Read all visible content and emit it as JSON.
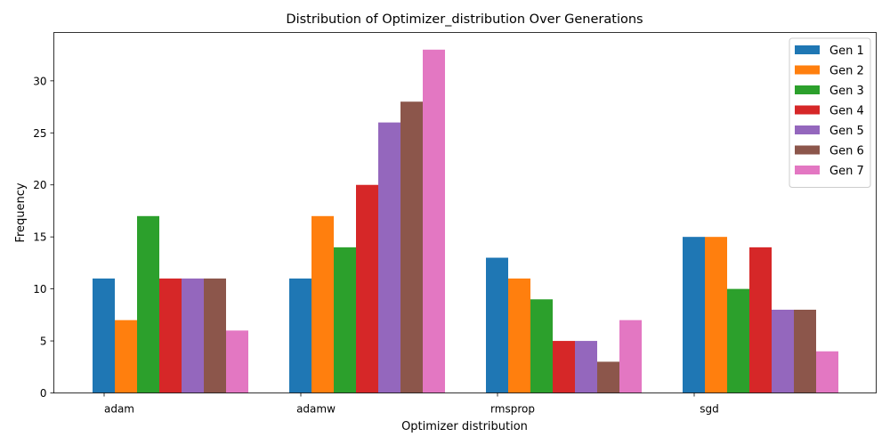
{
  "chart_data": {
    "type": "bar",
    "title": "Distribution of Optimizer_distribution Over Generations",
    "xlabel": "Optimizer distribution",
    "ylabel": "Frequency",
    "categories": [
      "adam",
      "adamw",
      "rmsprop",
      "sgd"
    ],
    "ylim": [
      0,
      34.65
    ],
    "yticks": [
      0,
      5,
      10,
      15,
      20,
      25,
      30
    ],
    "ytick_labels": [
      "0",
      "5",
      "10",
      "15",
      "20",
      "25",
      "30"
    ],
    "grid": false,
    "legend_position": "top-right",
    "series": [
      {
        "name": "Gen 1",
        "color": "#1f77b4",
        "values": [
          11,
          11,
          13,
          15
        ]
      },
      {
        "name": "Gen 2",
        "color": "#ff7f0e",
        "values": [
          7,
          17,
          11,
          15
        ]
      },
      {
        "name": "Gen 3",
        "color": "#2ca02c",
        "values": [
          17,
          14,
          9,
          10
        ]
      },
      {
        "name": "Gen 4",
        "color": "#d62728",
        "values": [
          11,
          20,
          5,
          14
        ]
      },
      {
        "name": "Gen 5",
        "color": "#9467bd",
        "values": [
          11,
          26,
          5,
          8
        ]
      },
      {
        "name": "Gen 6",
        "color": "#8c564b",
        "values": [
          11,
          28,
          3,
          8
        ]
      },
      {
        "name": "Gen 7",
        "color": "#e377c2",
        "values": [
          6,
          33,
          7,
          4
        ]
      }
    ]
  }
}
